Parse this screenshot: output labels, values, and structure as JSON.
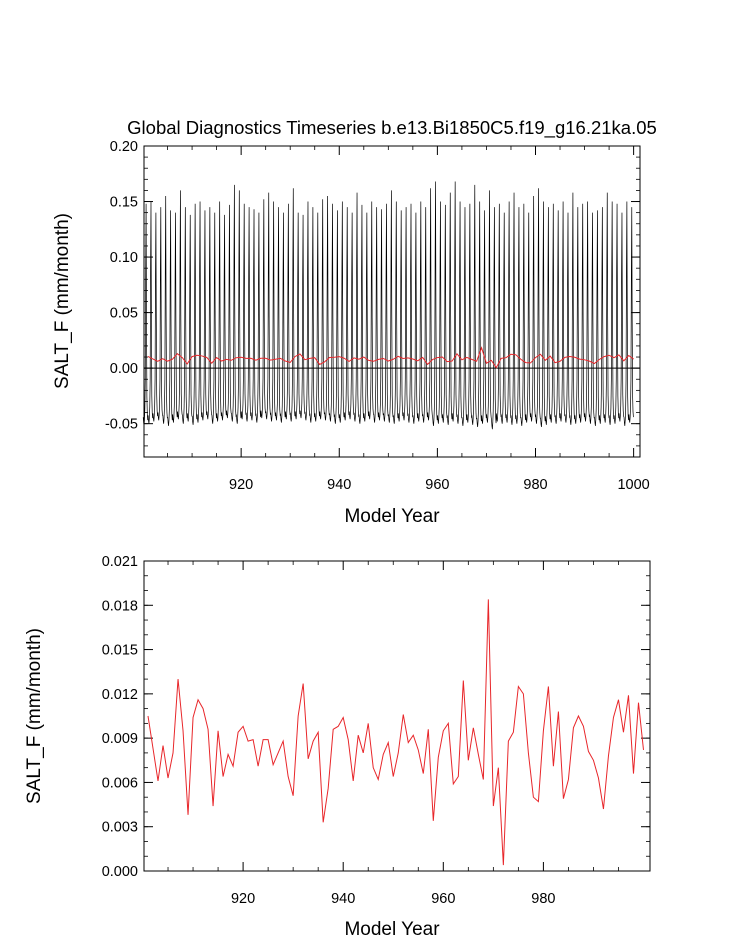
{
  "chart_data": [
    {
      "type": "line",
      "title": "Global Diagnostics Timeseries b.e13.Bi1850C5.f19_g16.21ka.05",
      "xlabel": "Model Year",
      "ylabel": "SALT_F (mm/month)",
      "xlim": [
        900.2,
        1001.3
      ],
      "ylim": [
        -0.08,
        0.2
      ],
      "xticks": [
        920,
        940,
        960,
        980,
        1000
      ],
      "yticks": [
        -0.05,
        0.0,
        0.05,
        0.1,
        0.15,
        0.2
      ],
      "ytick_labels": [
        "-0.05",
        "0.00",
        "0.05",
        "0.10",
        "0.15",
        "0.20"
      ],
      "reference_line": 0.0,
      "monthly_series": {
        "name": "monthly",
        "color": "#000000",
        "start_year": 901,
        "months_per_year": 12,
        "annual_max": [
          0.148,
          0.15,
          0.14,
          0.145,
          0.155,
          0.142,
          0.14,
          0.16,
          0.145,
          0.138,
          0.148,
          0.15,
          0.142,
          0.145,
          0.14,
          0.15,
          0.138,
          0.147,
          0.165,
          0.16,
          0.148,
          0.145,
          0.143,
          0.14,
          0.152,
          0.158,
          0.15,
          0.145,
          0.14,
          0.148,
          0.162,
          0.14,
          0.138,
          0.15,
          0.145,
          0.14,
          0.152,
          0.155,
          0.148,
          0.142,
          0.15,
          0.145,
          0.14,
          0.158,
          0.147,
          0.14,
          0.15,
          0.145,
          0.143,
          0.148,
          0.16,
          0.15,
          0.142,
          0.145,
          0.148,
          0.14,
          0.15,
          0.145,
          0.162,
          0.168,
          0.15,
          0.147,
          0.158,
          0.168,
          0.15,
          0.145,
          0.148,
          0.165,
          0.15,
          0.142,
          0.16,
          0.145,
          0.148,
          0.14,
          0.15,
          0.158,
          0.145,
          0.148,
          0.14,
          0.155,
          0.162,
          0.15,
          0.145,
          0.148,
          0.142,
          0.15,
          0.14,
          0.158,
          0.145,
          0.148,
          0.15,
          0.14,
          0.142,
          0.145,
          0.158,
          0.15,
          0.148,
          0.14,
          0.15,
          0.145
        ],
        "annual_min": [
          -0.052,
          -0.05,
          -0.048,
          -0.047,
          -0.05,
          -0.052,
          -0.049,
          -0.046,
          -0.05,
          -0.048,
          -0.051,
          -0.049,
          -0.047,
          -0.046,
          -0.05,
          -0.048,
          -0.047,
          -0.045,
          -0.048,
          -0.05,
          -0.046,
          -0.048,
          -0.047,
          -0.049,
          -0.045,
          -0.046,
          -0.048,
          -0.047,
          -0.049,
          -0.046,
          -0.048,
          -0.046,
          -0.045,
          -0.047,
          -0.049,
          -0.048,
          -0.046,
          -0.047,
          -0.048,
          -0.05,
          -0.049,
          -0.047,
          -0.046,
          -0.048,
          -0.05,
          -0.048,
          -0.046,
          -0.049,
          -0.047,
          -0.048,
          -0.049,
          -0.05,
          -0.048,
          -0.047,
          -0.049,
          -0.05,
          -0.048,
          -0.049,
          -0.047,
          -0.052,
          -0.05,
          -0.049,
          -0.051,
          -0.048,
          -0.05,
          -0.052,
          -0.049,
          -0.051,
          -0.053,
          -0.05,
          -0.049,
          -0.055,
          -0.048,
          -0.05,
          -0.049,
          -0.051,
          -0.05,
          -0.052,
          -0.049,
          -0.048,
          -0.05,
          -0.053,
          -0.051,
          -0.049,
          -0.05,
          -0.048,
          -0.049,
          -0.051,
          -0.05,
          -0.049,
          -0.048,
          -0.05,
          -0.052,
          -0.05,
          -0.049,
          -0.051,
          -0.05,
          -0.048,
          -0.052,
          -0.049
        ]
      },
      "annual_series": {
        "name": "annual",
        "color": "#e8262a",
        "x": [
          901,
          902,
          903,
          904,
          905,
          906,
          907,
          908,
          909,
          910,
          911,
          912,
          913,
          914,
          915,
          916,
          917,
          918,
          919,
          920,
          921,
          922,
          923,
          924,
          925,
          926,
          927,
          928,
          929,
          930,
          931,
          932,
          933,
          934,
          935,
          936,
          937,
          938,
          939,
          940,
          941,
          942,
          943,
          944,
          945,
          946,
          947,
          948,
          949,
          950,
          951,
          952,
          953,
          954,
          955,
          956,
          957,
          958,
          959,
          960,
          961,
          962,
          963,
          964,
          965,
          966,
          967,
          968,
          969,
          970,
          971,
          972,
          973,
          974,
          975,
          976,
          977,
          978,
          979,
          980,
          981,
          982,
          983,
          984,
          985,
          986,
          987,
          988,
          989,
          990,
          991,
          992,
          993,
          994,
          995,
          996,
          997,
          998,
          999,
          1000
        ],
        "values": [
          0.0105,
          0.0083,
          0.0061,
          0.0085,
          0.0063,
          0.008,
          0.013,
          0.0095,
          0.0038,
          0.0104,
          0.0116,
          0.011,
          0.0096,
          0.0044,
          0.0095,
          0.0064,
          0.0079,
          0.0071,
          0.0094,
          0.0098,
          0.0088,
          0.0089,
          0.0071,
          0.0089,
          0.0089,
          0.0072,
          0.008,
          0.0088,
          0.0064,
          0.0051,
          0.0105,
          0.0127,
          0.0076,
          0.0088,
          0.0094,
          0.0033,
          0.0056,
          0.0096,
          0.0098,
          0.0104,
          0.0089,
          0.0061,
          0.0092,
          0.008,
          0.01,
          0.007,
          0.0062,
          0.0079,
          0.0087,
          0.0064,
          0.008,
          0.0106,
          0.0087,
          0.0092,
          0.0082,
          0.0066,
          0.0096,
          0.0034,
          0.0077,
          0.0095,
          0.01,
          0.0059,
          0.0064,
          0.0129,
          0.0075,
          0.0097,
          0.0079,
          0.0062,
          0.0184,
          0.0044,
          0.007,
          0.0004,
          0.0088,
          0.0094,
          0.0125,
          0.012,
          0.008,
          0.005,
          0.0047,
          0.0095,
          0.0125,
          0.0071,
          0.0108,
          0.0049,
          0.0062,
          0.0097,
          0.0105,
          0.0098,
          0.0081,
          0.0075,
          0.0063,
          0.0042,
          0.0078,
          0.0104,
          0.0116,
          0.0094,
          0.0119,
          0.0066,
          0.0114,
          0.0082
        ]
      }
    },
    {
      "type": "line",
      "title": "",
      "xlabel": "Model Year",
      "ylabel": "SALT_F (mm/month)",
      "xlim": [
        900.2,
        1001.3
      ],
      "ylim": [
        0.0,
        0.021
      ],
      "xticks": [
        920,
        940,
        960,
        980
      ],
      "yticks": [
        0.0,
        0.003,
        0.006,
        0.009,
        0.012,
        0.015,
        0.018,
        0.021
      ],
      "ytick_labels": [
        "0.000",
        "0.003",
        "0.006",
        "0.009",
        "0.012",
        "0.015",
        "0.018",
        "0.021"
      ],
      "series": [
        {
          "name": "annual",
          "color": "#e8262a",
          "x": [
            901,
            902,
            903,
            904,
            905,
            906,
            907,
            908,
            909,
            910,
            911,
            912,
            913,
            914,
            915,
            916,
            917,
            918,
            919,
            920,
            921,
            922,
            923,
            924,
            925,
            926,
            927,
            928,
            929,
            930,
            931,
            932,
            933,
            934,
            935,
            936,
            937,
            938,
            939,
            940,
            941,
            942,
            943,
            944,
            945,
            946,
            947,
            948,
            949,
            950,
            951,
            952,
            953,
            954,
            955,
            956,
            957,
            958,
            959,
            960,
            961,
            962,
            963,
            964,
            965,
            966,
            967,
            968,
            969,
            970,
            971,
            972,
            973,
            974,
            975,
            976,
            977,
            978,
            979,
            980,
            981,
            982,
            983,
            984,
            985,
            986,
            987,
            988,
            989,
            990,
            991,
            992,
            993,
            994,
            995,
            996,
            997,
            998,
            999,
            1000
          ],
          "values": [
            0.0105,
            0.0083,
            0.0061,
            0.0085,
            0.0063,
            0.008,
            0.013,
            0.0095,
            0.0038,
            0.0104,
            0.0116,
            0.011,
            0.0096,
            0.0044,
            0.0095,
            0.0064,
            0.0079,
            0.0071,
            0.0094,
            0.0098,
            0.0088,
            0.0089,
            0.0071,
            0.0089,
            0.0089,
            0.0072,
            0.008,
            0.0088,
            0.0064,
            0.0051,
            0.0105,
            0.0127,
            0.0076,
            0.0088,
            0.0094,
            0.0033,
            0.0056,
            0.0096,
            0.0098,
            0.0104,
            0.0089,
            0.0061,
            0.0092,
            0.008,
            0.01,
            0.007,
            0.0062,
            0.0079,
            0.0087,
            0.0064,
            0.008,
            0.0106,
            0.0087,
            0.0092,
            0.0082,
            0.0066,
            0.0096,
            0.0034,
            0.0077,
            0.0095,
            0.01,
            0.0059,
            0.0064,
            0.0129,
            0.0075,
            0.0097,
            0.0079,
            0.0062,
            0.0184,
            0.0044,
            0.007,
            0.0004,
            0.0088,
            0.0094,
            0.0125,
            0.012,
            0.008,
            0.005,
            0.0047,
            0.0095,
            0.0125,
            0.0071,
            0.0108,
            0.0049,
            0.0062,
            0.0097,
            0.0105,
            0.0098,
            0.0081,
            0.0075,
            0.0063,
            0.0042,
            0.0078,
            0.0104,
            0.0116,
            0.0094,
            0.0119,
            0.0066,
            0.0114,
            0.0082
          ]
        }
      ]
    }
  ]
}
